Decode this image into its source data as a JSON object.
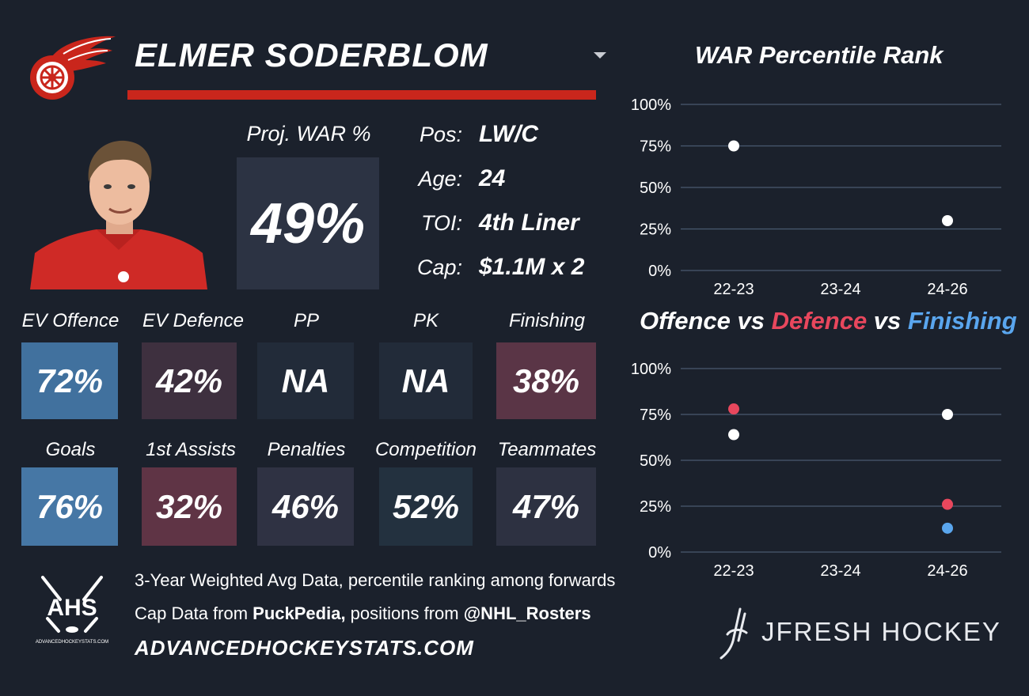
{
  "player": {
    "name": "ELMER SODERBLOM",
    "proj_war_label": "Proj. WAR %",
    "proj_war_value": "49%",
    "info": [
      {
        "key": "Pos:",
        "value": "LW/C"
      },
      {
        "key": "Age:",
        "value": "24"
      },
      {
        "key": "TOI:",
        "value": "4th Liner"
      },
      {
        "key": "Cap:",
        "value": "$1.1M x 2"
      }
    ]
  },
  "tiles": [
    {
      "label": "EV Offence",
      "value": "72%",
      "color": "#41719e"
    },
    {
      "label": "EV Defence",
      "value": "42%",
      "color": "#3e303f"
    },
    {
      "label": "PP",
      "value": "NA",
      "color": "#222b39"
    },
    {
      "label": "PK",
      "value": "NA",
      "color": "#222b39"
    },
    {
      "label": "Finishing",
      "value": "38%",
      "color": "#5a3546"
    },
    {
      "label": "Goals",
      "value": "76%",
      "color": "#4677a5"
    },
    {
      "label": "1st Assists",
      "value": "32%",
      "color": "#5f3445"
    },
    {
      "label": "Penalties",
      "value": "46%",
      "color": "#2f3243"
    },
    {
      "label": "Competition",
      "value": "52%",
      "color": "#23313f"
    },
    {
      "label": "Teammates",
      "value": "47%",
      "color": "#2d3141"
    }
  ],
  "footer": {
    "line1": "3-Year Weighted Avg Data, percentile ranking among forwards",
    "line2_prefix": "Cap Data from ",
    "line2_source": "PuckPedia,",
    "line2_mid": " positions from ",
    "line2_handle": "@NHL_Rosters",
    "site": "ADVANCEDHOCKEYSTATS.COM",
    "ahs_logo_text": "AHS",
    "ahs_logo_sub": "ADVANCEDHOCKEYSTATS.COM",
    "brand": "JFRESH HOCKEY"
  },
  "colors": {
    "background": "#1b212c",
    "accent_red": "#c9261c",
    "offence": "#ffffff",
    "defence": "#e8475d",
    "finishing": "#5aa6ee"
  },
  "chart_data": [
    {
      "type": "scatter",
      "title": "WAR Percentile Rank",
      "categories": [
        "22-23",
        "23-24",
        "24-26"
      ],
      "yticks": [
        "100%",
        "75%",
        "50%",
        "25%",
        "0%"
      ],
      "ylim": [
        0,
        100
      ],
      "grid": true,
      "series": [
        {
          "values": [
            75,
            null,
            30
          ],
          "color": "#ffffff"
        }
      ]
    },
    {
      "type": "scatter",
      "title_parts": [
        {
          "text": "Offence",
          "color": "#ffffff"
        },
        {
          "text": " vs ",
          "color": "#ffffff"
        },
        {
          "text": "Defence",
          "color": "#e8475d"
        },
        {
          "text": " vs ",
          "color": "#ffffff"
        },
        {
          "text": "Finishing",
          "color": "#5aa6ee"
        }
      ],
      "categories": [
        "22-23",
        "23-24",
        "24-26"
      ],
      "yticks": [
        "100%",
        "75%",
        "50%",
        "25%",
        "0%"
      ],
      "ylim": [
        0,
        100
      ],
      "grid": true,
      "series": [
        {
          "name": "Offence",
          "values": [
            64,
            null,
            75
          ],
          "color": "#ffffff"
        },
        {
          "name": "Defence",
          "values": [
            78,
            null,
            26
          ],
          "color": "#e8475d"
        },
        {
          "name": "Finishing",
          "values": [
            null,
            null,
            13
          ],
          "color": "#5aa6ee"
        }
      ]
    }
  ]
}
